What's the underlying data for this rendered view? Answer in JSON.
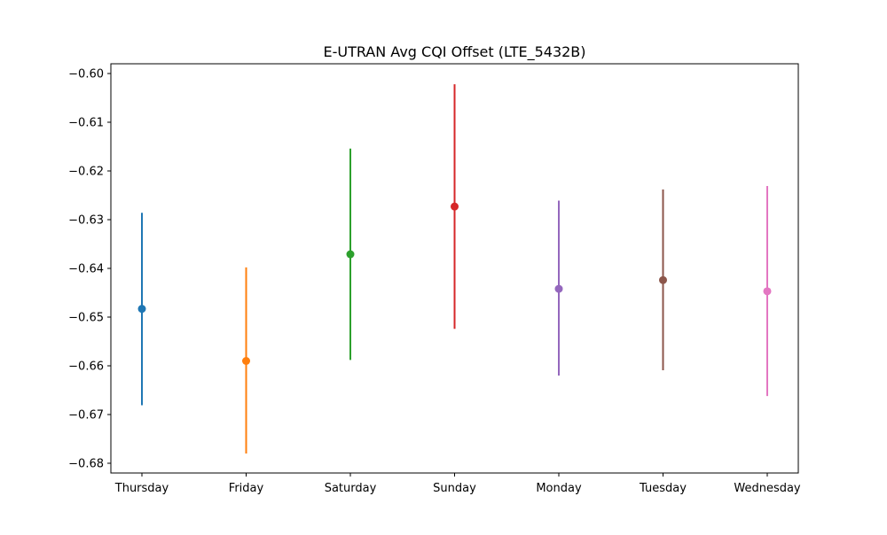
{
  "chart_data": {
    "type": "scatter",
    "title": "E-UTRAN Avg CQI Offset (LTE_5432B)",
    "xlabel": "",
    "ylabel": "",
    "categories": [
      "Thursday",
      "Friday",
      "Saturday",
      "Sunday",
      "Monday",
      "Tuesday",
      "Wednesday"
    ],
    "values": [
      -0.6483,
      -0.659,
      -0.6371,
      -0.6273,
      -0.6442,
      -0.6424,
      -0.6447
    ],
    "error_low": [
      -0.6681,
      -0.678,
      -0.6588,
      -0.6524,
      -0.662,
      -0.6609,
      -0.6662
    ],
    "error_high": [
      -0.6286,
      -0.6398,
      -0.6154,
      -0.6022,
      -0.6261,
      -0.6238,
      -0.6231
    ],
    "colors": [
      "#1f77b4",
      "#ff7f0e",
      "#2ca02c",
      "#d62728",
      "#9467bd",
      "#8c564b",
      "#e377c2"
    ],
    "ylim": [
      -0.682,
      -0.598
    ],
    "yticks": [
      -0.68,
      -0.67,
      -0.66,
      -0.65,
      -0.64,
      -0.63,
      -0.62,
      -0.61,
      -0.6
    ],
    "ytick_labels": [
      "−0.68",
      "−0.67",
      "−0.66",
      "−0.65",
      "−0.64",
      "−0.63",
      "−0.62",
      "−0.61",
      "−0.60"
    ],
    "grid": false,
    "legend": "none"
  }
}
